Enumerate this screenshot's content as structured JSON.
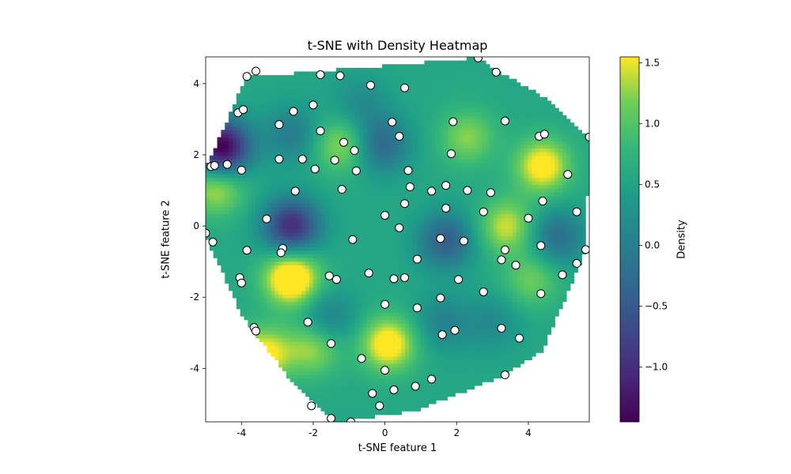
{
  "chart_data": {
    "type": "scatter",
    "title": "t-SNE with Density Heatmap",
    "xlabel": "t-SNE feature 1",
    "ylabel": "t-SNE feature 2",
    "xlim": [
      -5.0,
      5.7
    ],
    "ylim": [
      -5.5,
      4.75
    ],
    "xticks": [
      -4,
      -2,
      0,
      2,
      4
    ],
    "yticks": [
      -4,
      -2,
      0,
      2,
      4
    ],
    "grid": false,
    "points": {
      "x": [
        -3.85,
        -3.6,
        -1.8,
        -1.25,
        -0.4,
        0.55,
        2.6,
        3.1,
        -4.1,
        -3.95,
        -2.55,
        -2.95,
        -2.0,
        -1.8,
        0.2,
        0.4,
        1.9,
        3.35,
        -1.15,
        -0.85,
        -2.95,
        -2.3,
        -1.4,
        1.85,
        4.3,
        4.45,
        5.7,
        -4.85,
        -4.75,
        -4.4,
        -4.0,
        -1.95,
        -0.8,
        0.65,
        -2.5,
        -1.2,
        0.7,
        1.3,
        1.7,
        2.3,
        2.95,
        0.55,
        1.7,
        2.75,
        4.4,
        5.1,
        5.35,
        4.0,
        -3.3,
        0.0,
        -5.0,
        -4.8,
        0.4,
        -3.85,
        -2.85,
        -2.9,
        -0.9,
        1.55,
        2.2,
        3.35,
        4.35,
        5.6,
        -4.05,
        -4.0,
        -1.55,
        -1.35,
        -0.45,
        0.25,
        0.55,
        0.9,
        3.25,
        3.65,
        5.35,
        4.95,
        2.05,
        1.55,
        2.75,
        -0.0,
        0.9,
        4.35,
        -2.15,
        -3.65,
        -3.6,
        -1.5,
        1.6,
        1.95,
        3.25,
        3.75,
        -0.65,
        0.0,
        3.35,
        -0.35,
        0.25,
        0.85,
        1.3,
        -0.15,
        -2.05,
        -1.5,
        -0.95
      ],
      "y": [
        4.2,
        4.35,
        4.25,
        4.22,
        3.95,
        3.88,
        4.72,
        4.32,
        3.18,
        3.27,
        3.22,
        2.85,
        3.4,
        2.67,
        2.92,
        2.52,
        2.93,
        2.95,
        2.35,
        2.12,
        1.88,
        1.88,
        1.85,
        2.03,
        2.52,
        2.58,
        2.5,
        1.67,
        1.7,
        1.73,
        1.57,
        1.6,
        1.55,
        1.56,
        0.98,
        1.03,
        1.1,
        0.98,
        1.14,
        1.0,
        0.94,
        0.63,
        0.5,
        0.4,
        0.7,
        1.45,
        0.4,
        0.22,
        0.2,
        0.3,
        -0.2,
        -0.45,
        -0.05,
        -0.68,
        -0.63,
        -0.75,
        -0.38,
        -0.35,
        -0.42,
        -0.67,
        -0.55,
        -0.66,
        -1.45,
        -1.6,
        -1.4,
        -1.5,
        -1.32,
        -1.48,
        -1.45,
        -0.93,
        -0.95,
        -1.1,
        -1.05,
        -1.37,
        -1.5,
        -2.02,
        -1.85,
        -2.2,
        -2.3,
        -1.9,
        -2.7,
        -2.85,
        -2.95,
        -3.3,
        -3.05,
        -2.93,
        -2.87,
        -3.15,
        -3.72,
        -4.05,
        -4.18,
        -4.7,
        -4.6,
        -4.5,
        -4.3,
        -5.05,
        -5.05,
        -5.4,
        -5.5
      ]
    },
    "heatmap": {
      "colormap": "viridis",
      "colorbar_label": "Density",
      "colorbar_range": [
        -1.45,
        1.55
      ],
      "colorbar_ticks": [
        -1.0,
        -0.5,
        0.0,
        0.5,
        1.0,
        1.5
      ],
      "hull": [
        [
          -5.0,
          -0.2
        ],
        [
          -5.0,
          1.65
        ],
        [
          -4.3,
          3.18
        ],
        [
          -3.85,
          4.25
        ],
        [
          -3.0,
          4.25
        ],
        [
          2.55,
          4.72
        ],
        [
          4.45,
          3.6
        ],
        [
          5.7,
          2.5
        ],
        [
          5.6,
          -0.66
        ],
        [
          4.4,
          -3.5
        ],
        [
          3.3,
          -4.2
        ],
        [
          0.8,
          -5.2
        ],
        [
          -1.4,
          -5.5
        ],
        [
          -2.5,
          -4.5
        ],
        [
          -4.0,
          -2.5
        ],
        [
          -4.9,
          -0.5
        ]
      ],
      "peaks": [
        [
          -2.6,
          -1.45,
          1.5
        ],
        [
          4.4,
          1.7,
          1.15
        ],
        [
          0.1,
          -3.3,
          1.2
        ],
        [
          -3.4,
          -3.6,
          1.1
        ],
        [
          -1.2,
          2.3,
          0.8
        ],
        [
          2.3,
          2.5,
          0.7
        ],
        [
          3.4,
          0.0,
          0.9
        ],
        [
          -2.0,
          -3.4,
          0.8
        ],
        [
          4.1,
          -1.5,
          0.6
        ],
        [
          -4.7,
          1.1,
          0.9
        ],
        [
          -4.55,
          2.2,
          -2.1
        ],
        [
          -2.6,
          0.0,
          -1.6
        ],
        [
          -0.1,
          2.3,
          -0.9
        ],
        [
          1.7,
          -0.4,
          -1.0
        ],
        [
          4.8,
          -0.3,
          -0.8
        ],
        [
          -1.6,
          -2.6,
          -0.6
        ],
        [
          -2.6,
          2.6,
          -0.6
        ],
        [
          1.6,
          -2.7,
          -0.5
        ],
        [
          -0.7,
          3.4,
          -0.4
        ],
        [
          3.0,
          -2.7,
          -0.4
        ]
      ]
    }
  }
}
